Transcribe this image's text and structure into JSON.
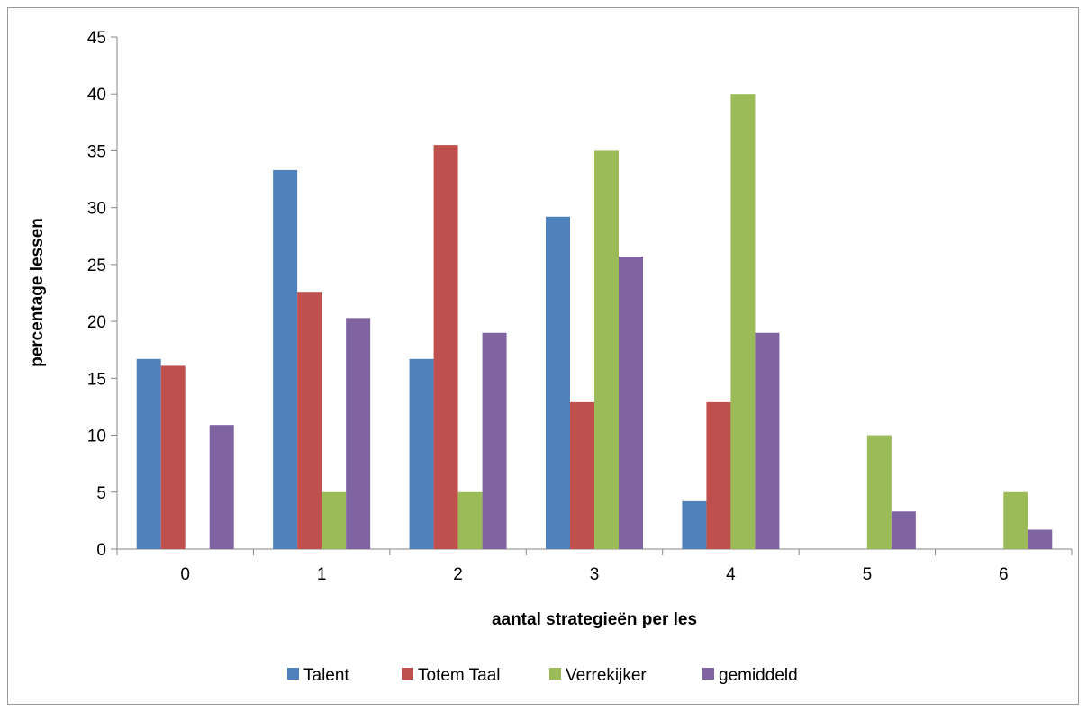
{
  "chart_data": {
    "type": "bar",
    "title": "",
    "xlabel": "aantal strategieën per les",
    "ylabel": "percentage lessen",
    "ylim": [
      0,
      45
    ],
    "yticks": [
      0,
      5,
      10,
      15,
      20,
      25,
      30,
      35,
      40,
      45
    ],
    "categories": [
      "0",
      "1",
      "2",
      "3",
      "4",
      "5",
      "6"
    ],
    "series": [
      {
        "name": "Talent",
        "color": "#4f81bd",
        "values": [
          16.7,
          33.3,
          16.7,
          29.2,
          4.2,
          0,
          0
        ]
      },
      {
        "name": "Totem Taal",
        "color": "#c0504d",
        "values": [
          16.1,
          22.6,
          35.5,
          12.9,
          12.9,
          0,
          0
        ]
      },
      {
        "name": "Verrekijker",
        "color": "#9bbb59",
        "values": [
          0,
          5,
          5,
          35,
          40,
          10,
          5
        ]
      },
      {
        "name": "gemiddeld",
        "color": "#8064a2",
        "values": [
          10.9,
          20.3,
          19.0,
          25.7,
          19.0,
          3.3,
          1.7
        ]
      }
    ],
    "grid": false,
    "legend": "bottom"
  }
}
